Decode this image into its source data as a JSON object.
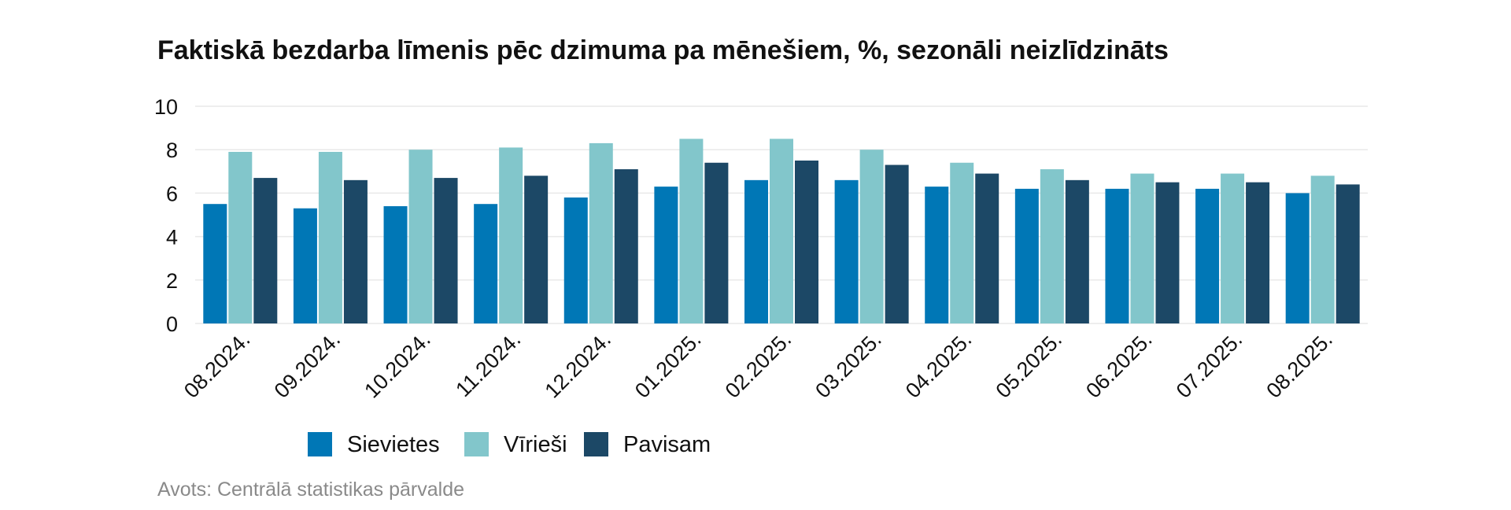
{
  "chart_data": {
    "type": "bar",
    "title": "Faktiskā bezdarba līmenis pēc dzimuma pa mēnešiem, %, sezonāli neizlīdzināts",
    "categories": [
      "08.2024.",
      "09.2024.",
      "10.2024.",
      "11.2024.",
      "12.2024.",
      "01.2025.",
      "02.2025.",
      "03.2025.",
      "04.2025.",
      "05.2025.",
      "06.2025.",
      "07.2025.",
      "08.2025."
    ],
    "series": [
      {
        "name": "Sievietes",
        "color": "#0077b6",
        "values": [
          5.5,
          5.3,
          5.4,
          5.5,
          5.8,
          6.3,
          6.6,
          6.6,
          6.3,
          6.2,
          6.2,
          6.2,
          6.0
        ]
      },
      {
        "name": "Vīrieši",
        "color": "#82c6cb",
        "values": [
          7.9,
          7.9,
          8.0,
          8.1,
          8.3,
          8.5,
          8.5,
          8.0,
          7.4,
          7.1,
          6.9,
          6.9,
          6.8
        ]
      },
      {
        "name": "Pavisam",
        "color": "#1c4866",
        "values": [
          6.7,
          6.6,
          6.7,
          6.8,
          7.1,
          7.4,
          7.5,
          7.3,
          6.9,
          6.6,
          6.5,
          6.5,
          6.4
        ]
      }
    ],
    "ylim": [
      0,
      10
    ],
    "yticks": [
      0,
      2,
      4,
      6,
      8,
      10
    ],
    "xlabel": "",
    "ylabel": "",
    "grid": true,
    "legend_position": "bottom-left",
    "source": "Avots: Centrālā statistikas pārvalde"
  }
}
